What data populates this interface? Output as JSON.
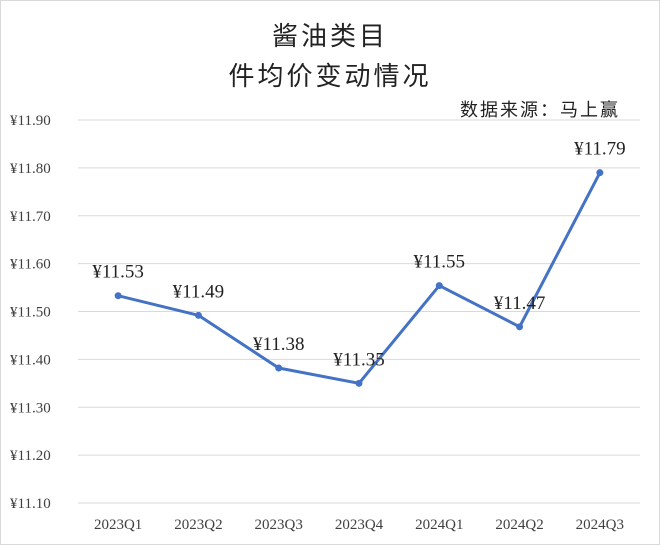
{
  "chart_data": {
    "type": "line",
    "title_lines": [
      "酱油类目",
      "件均价变动情况"
    ],
    "source": "数据来源：马上赢",
    "categories": [
      "2023Q1",
      "2023Q2",
      "2023Q3",
      "2023Q4",
      "2024Q1",
      "2024Q2",
      "2024Q3"
    ],
    "series": [
      {
        "values": [
          11.533,
          11.492,
          11.382,
          11.35,
          11.554,
          11.468,
          11.79
        ],
        "labels": [
          "¥11.53",
          "¥11.49",
          "¥11.38",
          "¥11.35",
          "¥11.55",
          "¥11.47",
          "¥11.79"
        ],
        "color": "#4472c4"
      }
    ],
    "ylim": [
      11.1,
      11.9
    ],
    "yticks": [
      11.9,
      11.8,
      11.7,
      11.6,
      11.5,
      11.4,
      11.3,
      11.2,
      11.1
    ],
    "ytick_labels": [
      "¥11.90",
      "¥11.80",
      "¥11.70",
      "¥11.60",
      "¥11.50",
      "¥11.40",
      "¥11.30",
      "¥11.20",
      "¥11.10"
    ],
    "grid": true,
    "gridline_color": "#d9d9d9"
  }
}
